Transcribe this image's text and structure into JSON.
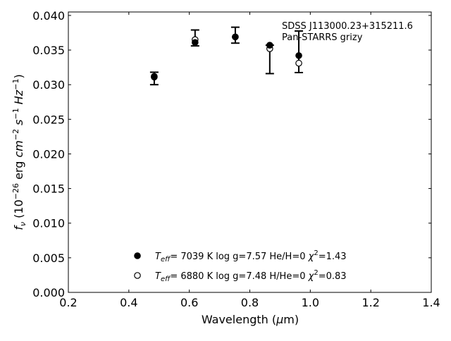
{
  "chart_data": {
    "type": "scatter",
    "xlabel": "Wavelength (μm)",
    "ylabel": "f_ν (10^-26 erg cm^-2 s^-1 Hz^-1)",
    "xlim": [
      0.2,
      1.4
    ],
    "ylim": [
      0.0,
      0.0405
    ],
    "xticks": [
      "0.2",
      "0.4",
      "0.6",
      "0.8",
      "1.0",
      "1.2",
      "1.4"
    ],
    "yticks": [
      "0.000",
      "0.005",
      "0.010",
      "0.015",
      "0.020",
      "0.025",
      "0.030",
      "0.035",
      "0.040"
    ],
    "grid": false,
    "annotation": [
      "SDSS J113000.23+315211.6",
      "Pan-STARRS grizy"
    ],
    "observed": {
      "x": [
        0.484,
        0.619,
        0.752,
        0.866,
        0.962
      ],
      "y": [
        0.0309,
        0.03675,
        0.03715,
        0.03365,
        0.03475
      ],
      "yerr": [
        0.0009,
        0.00115,
        0.00115,
        0.00205,
        0.003
      ]
    },
    "series": [
      {
        "marker": "filled",
        "label": {
          "teff": "7039 K",
          "logg": "log g=7.57",
          "comp": "He/H=0",
          "chi2": "=1.43"
        },
        "x": [
          0.484,
          0.619,
          0.752,
          0.866,
          0.962
        ],
        "y": [
          0.0311,
          0.0361,
          0.0369,
          0.0357,
          0.0342
        ]
      },
      {
        "marker": "open",
        "label": {
          "teff": "6880 K",
          "logg": "log g=7.48",
          "comp": "H/He=0",
          "chi2": "=0.83"
        },
        "x": [
          0.484,
          0.619,
          0.752,
          0.866,
          0.962
        ],
        "y": [
          0.0312,
          0.0365,
          0.0369,
          0.0352,
          0.0331
        ]
      }
    ],
    "legend_placement": "bottom-center"
  }
}
